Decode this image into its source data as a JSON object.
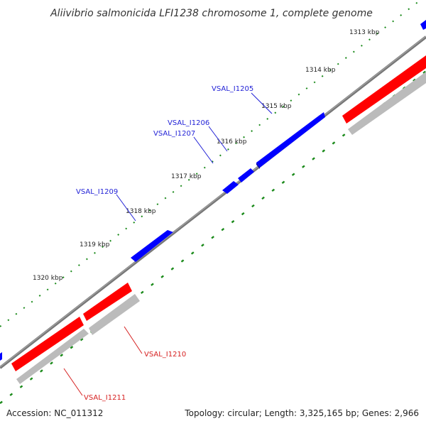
{
  "title": "Aliivibrio salmonicida LFI1238 chromosome 1, complete genome",
  "footer": {
    "accession": "Accession: NC_011312",
    "summary": "Topology: circular; Length: 3,325,165 bp; Genes: 2,966"
  },
  "kbp_labels": [
    "1313 kbp",
    "1314 kbp",
    "1315 kbp",
    "1316 kbp",
    "1317 kbp",
    "1318 kbp",
    "1319 kbp",
    "1320 kbp"
  ],
  "genes": {
    "forward": [
      "VSAL_I1205",
      "VSAL_I1206",
      "VSAL_I1207",
      "VSAL_I1209"
    ],
    "reverse": [
      "VSAL_I1210",
      "VSAL_I1211"
    ]
  },
  "colors": {
    "forward_gene": "#0000ff",
    "reverse_gene": "#ff0000",
    "reverse_shadow": "#bbbbbb",
    "backbone": "#777777",
    "tick": "#1a8a1a"
  }
}
